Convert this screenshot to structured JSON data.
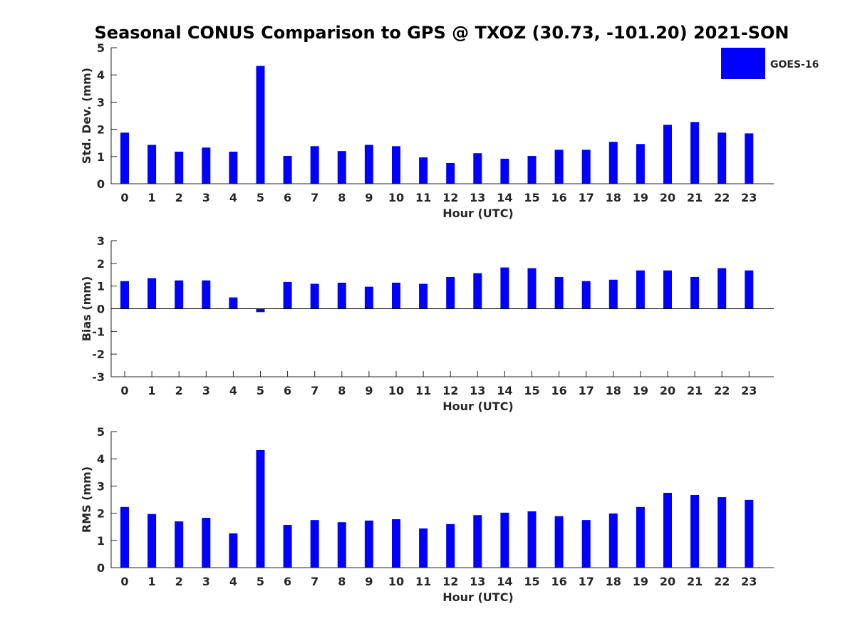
{
  "title": "Seasonal CONUS Comparison to GPS @ TXOZ (30.73, -101.20) 2021-SON",
  "legend": {
    "label": "GOES-16",
    "color": "#0000ff",
    "placement": "top-right"
  },
  "colors": {
    "bar": "#0000ff",
    "axis": "#262626",
    "background": "#ffffff"
  },
  "chart_data": [
    {
      "type": "bar",
      "name": "Std. Dev.",
      "xlabel": "Hour (UTC)",
      "ylabel": "Std. Dev. (mm)",
      "ylim": [
        0,
        5
      ],
      "yticks": [
        0,
        1,
        2,
        3,
        4,
        5
      ],
      "categories": [
        "0",
        "1",
        "2",
        "3",
        "4",
        "5",
        "6",
        "7",
        "8",
        "9",
        "10",
        "11",
        "12",
        "13",
        "14",
        "15",
        "16",
        "17",
        "18",
        "19",
        "20",
        "21",
        "22",
        "23"
      ],
      "series": [
        {
          "name": "GOES-16",
          "values": [
            1.88,
            1.43,
            1.18,
            1.33,
            1.18,
            4.33,
            1.02,
            1.38,
            1.2,
            1.43,
            1.38,
            0.97,
            0.76,
            1.12,
            0.92,
            1.02,
            1.25,
            1.25,
            1.54,
            1.46,
            2.17,
            2.27,
            1.88,
            1.85
          ]
        }
      ]
    },
    {
      "type": "bar",
      "name": "Bias",
      "xlabel": "Hour (UTC)",
      "ylabel": "Bias (mm)",
      "ylim": [
        -3,
        3
      ],
      "yticks": [
        -3,
        -2,
        -1,
        0,
        1,
        2,
        3
      ],
      "categories": [
        "0",
        "1",
        "2",
        "3",
        "4",
        "5",
        "6",
        "7",
        "8",
        "9",
        "10",
        "11",
        "12",
        "13",
        "14",
        "15",
        "16",
        "17",
        "18",
        "19",
        "20",
        "21",
        "22",
        "23"
      ],
      "series": [
        {
          "name": "GOES-16",
          "values": [
            1.22,
            1.35,
            1.25,
            1.25,
            0.5,
            -0.15,
            1.18,
            1.1,
            1.15,
            0.97,
            1.15,
            1.1,
            1.4,
            1.57,
            1.82,
            1.79,
            1.4,
            1.22,
            1.28,
            1.69,
            1.69,
            1.4,
            1.79,
            1.69
          ]
        }
      ]
    },
    {
      "type": "bar",
      "name": "RMS",
      "xlabel": "Hour (UTC)",
      "ylabel": "RMS (mm)",
      "ylim": [
        0,
        5
      ],
      "yticks": [
        0,
        1,
        2,
        3,
        4,
        5
      ],
      "categories": [
        "0",
        "1",
        "2",
        "3",
        "4",
        "5",
        "6",
        "7",
        "8",
        "9",
        "10",
        "11",
        "12",
        "13",
        "14",
        "15",
        "16",
        "17",
        "18",
        "19",
        "20",
        "21",
        "22",
        "23"
      ],
      "series": [
        {
          "name": "GOES-16",
          "values": [
            2.23,
            1.97,
            1.7,
            1.83,
            1.26,
            4.32,
            1.57,
            1.75,
            1.67,
            1.73,
            1.78,
            1.44,
            1.6,
            1.93,
            2.02,
            2.07,
            1.89,
            1.75,
            1.99,
            2.23,
            2.75,
            2.67,
            2.59,
            2.49
          ]
        }
      ]
    }
  ]
}
